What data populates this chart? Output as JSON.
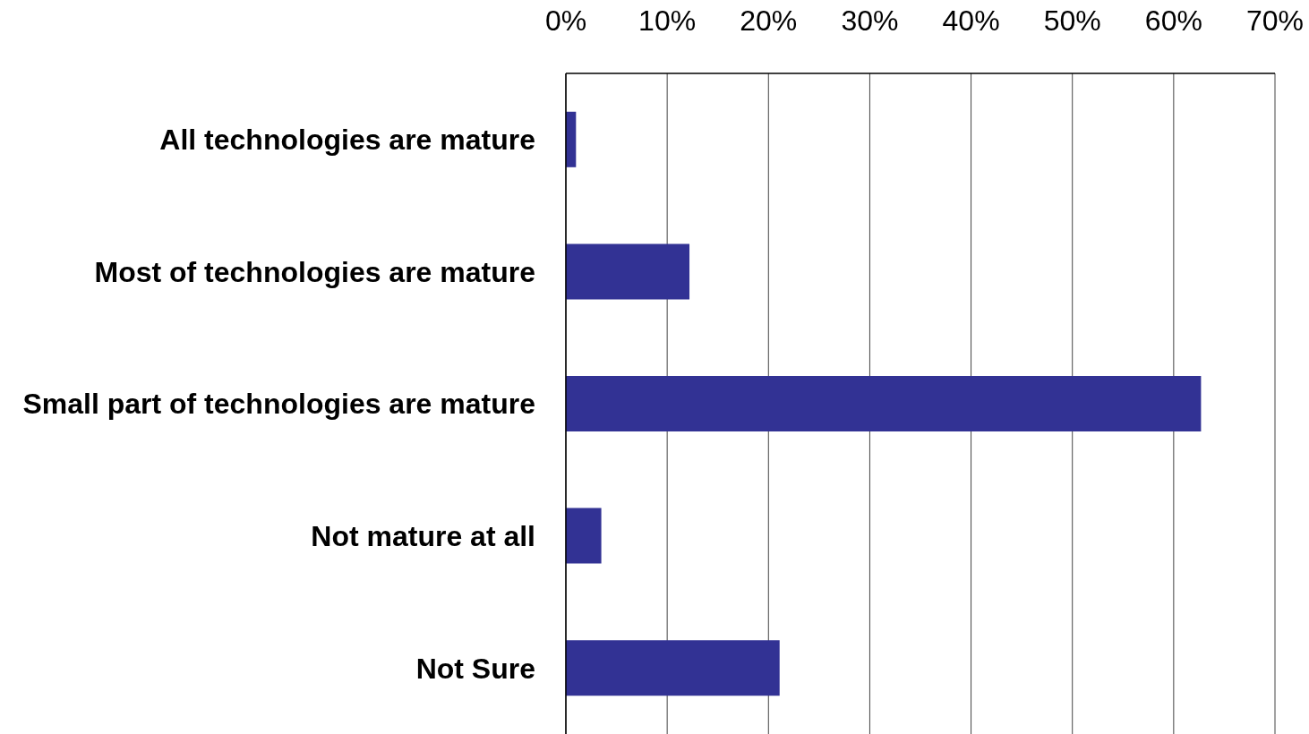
{
  "chart_data": {
    "type": "bar",
    "orientation": "horizontal",
    "categories": [
      "All technologies are mature",
      "Most of technologies are mature",
      "Small part of technologies are mature",
      "Not mature at all",
      "Not Sure"
    ],
    "values": [
      1,
      12.2,
      62.7,
      3.5,
      21.1
    ],
    "color": "#323294",
    "xlim": [
      0,
      70
    ],
    "xticks": [
      {
        "value": 0,
        "label": "0%"
      },
      {
        "value": 10,
        "label": "10%"
      },
      {
        "value": 20,
        "label": "20%"
      },
      {
        "value": 30,
        "label": "30%"
      },
      {
        "value": 40,
        "label": "40%"
      },
      {
        "value": 50,
        "label": "50%"
      },
      {
        "value": 60,
        "label": "60%"
      },
      {
        "value": 70,
        "label": "70%"
      }
    ],
    "grid": "x"
  }
}
